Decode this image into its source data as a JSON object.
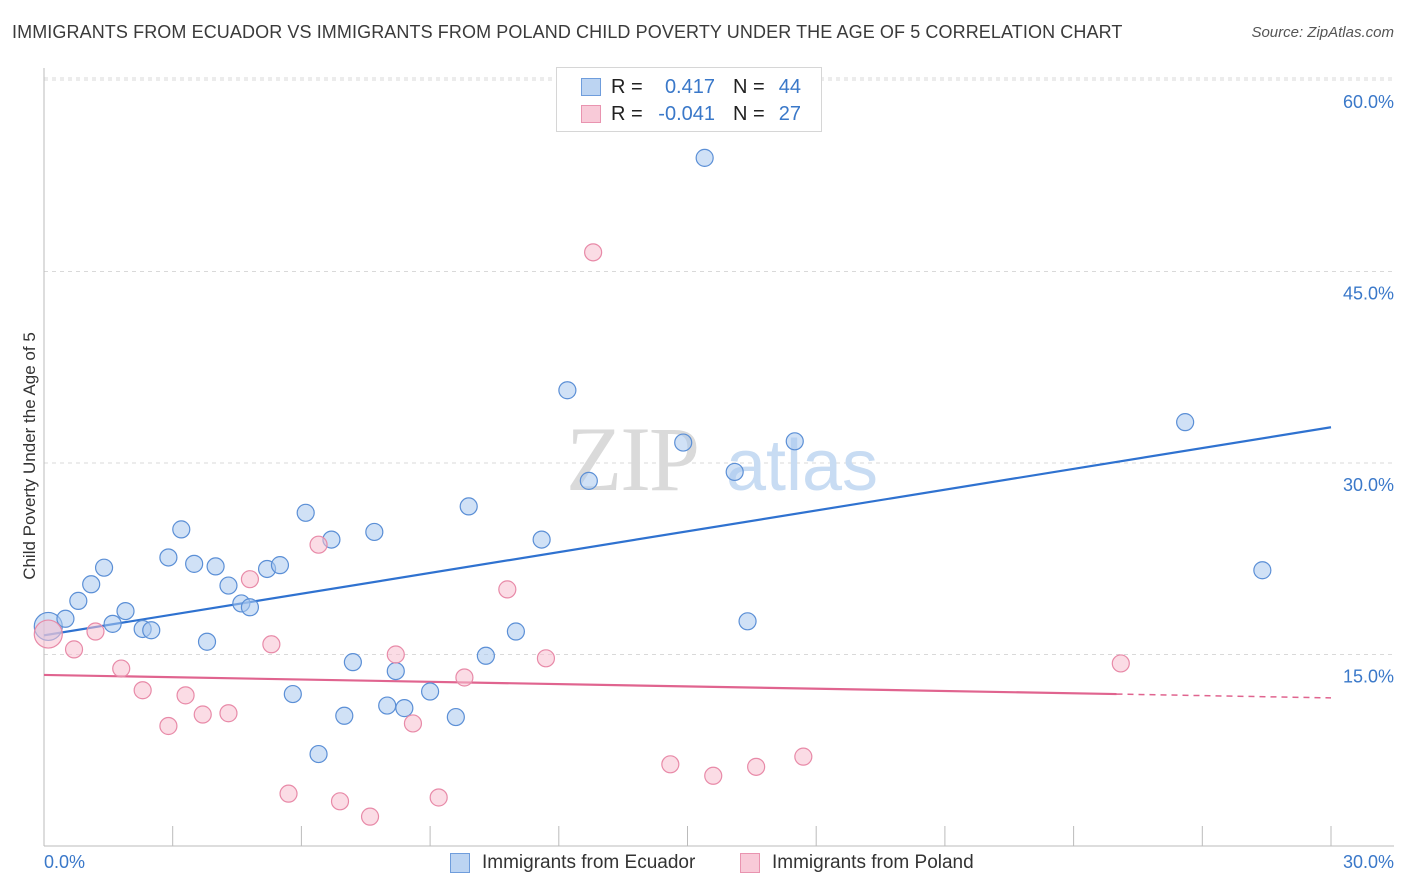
{
  "header": {
    "title": "IMMIGRANTS FROM ECUADOR VS IMMIGRANTS FROM POLAND CHILD POVERTY UNDER THE AGE OF 5 CORRELATION CHART",
    "source": "Source: ZipAtlas.com"
  },
  "legend": {
    "ecuador": {
      "r_label": "R =",
      "r_value": "0.417",
      "n_label": "N =",
      "n_value": "44"
    },
    "poland": {
      "r_label": "R =",
      "r_value": "-0.041",
      "n_label": "N =",
      "n_value": "27"
    }
  },
  "bottom_legend": {
    "ecuador": "Immigrants from Ecuador",
    "poland": "Immigrants from Poland"
  },
  "colors": {
    "ecuador_fill": "#a9c8ef",
    "ecuador_stroke": "#5b8fd6",
    "ecuador_line": "#2f72d0",
    "poland_fill": "#f7bfd0",
    "poland_stroke": "#e88aa8",
    "poland_line": "#e0648f",
    "axis_label": "#3a78c9",
    "grid": "#d9d9d9"
  },
  "watermark": {
    "zip": "ZIP",
    "atlas": "atlas"
  },
  "chart_data": {
    "type": "scatter",
    "title": "IMMIGRANTS FROM ECUADOR VS IMMIGRANTS FROM POLAND CHILD POVERTY UNDER THE AGE OF 5 CORRELATION CHART",
    "xlabel": "",
    "ylabel": "Child Poverty Under the Age of 5",
    "xlim": [
      0,
      30
    ],
    "ylim": [
      0,
      60
    ],
    "x_tick_labels": [
      "0.0%",
      "30.0%"
    ],
    "y_ticks": [
      15,
      30,
      45,
      60
    ],
    "y_tick_labels": [
      "15.0%",
      "30.0%",
      "45.0%",
      "60.0%"
    ],
    "grid": true,
    "legend_position": "top-center",
    "series": [
      {
        "name": "Immigrants from Ecuador",
        "r": 0.417,
        "n": 44,
        "trend": {
          "x": [
            0,
            30
          ],
          "y": [
            16.5,
            32.8
          ]
        },
        "points": [
          [
            0.1,
            17.2
          ],
          [
            0.5,
            17.8
          ],
          [
            0.8,
            19.2
          ],
          [
            1.1,
            20.5
          ],
          [
            1.4,
            21.8
          ],
          [
            1.6,
            17.4
          ],
          [
            1.9,
            18.4
          ],
          [
            2.3,
            17.0
          ],
          [
            2.5,
            16.9
          ],
          [
            2.9,
            22.6
          ],
          [
            3.2,
            24.8
          ],
          [
            3.5,
            22.1
          ],
          [
            3.8,
            16.0
          ],
          [
            4.0,
            21.9
          ],
          [
            4.3,
            20.4
          ],
          [
            4.6,
            19.0
          ],
          [
            4.8,
            18.7
          ],
          [
            5.2,
            21.7
          ],
          [
            5.5,
            22.0
          ],
          [
            5.8,
            11.9
          ],
          [
            6.1,
            26.1
          ],
          [
            6.4,
            7.2
          ],
          [
            6.7,
            24.0
          ],
          [
            7.0,
            10.2
          ],
          [
            7.2,
            14.4
          ],
          [
            7.7,
            24.6
          ],
          [
            8.0,
            11.0
          ],
          [
            8.2,
            13.7
          ],
          [
            8.4,
            10.8
          ],
          [
            9.0,
            12.1
          ],
          [
            9.6,
            10.1
          ],
          [
            9.9,
            26.6
          ],
          [
            10.3,
            14.9
          ],
          [
            11.0,
            16.8
          ],
          [
            11.6,
            24.0
          ],
          [
            12.2,
            35.7
          ],
          [
            12.7,
            28.6
          ],
          [
            14.9,
            31.6
          ],
          [
            15.4,
            53.9
          ],
          [
            16.1,
            29.3
          ],
          [
            16.4,
            17.6
          ],
          [
            17.5,
            31.7
          ],
          [
            26.6,
            33.2
          ],
          [
            28.4,
            21.6
          ]
        ]
      },
      {
        "name": "Immigrants from Poland",
        "r": -0.041,
        "n": 27,
        "trend": {
          "x": [
            0,
            25
          ],
          "y": [
            13.4,
            11.9
          ]
        },
        "trend_dashed": {
          "x": [
            25,
            30
          ],
          "y": [
            11.9,
            11.6
          ]
        },
        "points": [
          [
            0.1,
            16.6
          ],
          [
            0.7,
            15.4
          ],
          [
            1.2,
            16.8
          ],
          [
            1.8,
            13.9
          ],
          [
            2.3,
            12.2
          ],
          [
            2.9,
            9.4
          ],
          [
            3.3,
            11.8
          ],
          [
            3.7,
            10.3
          ],
          [
            4.3,
            10.4
          ],
          [
            4.8,
            20.9
          ],
          [
            5.3,
            15.8
          ],
          [
            5.7,
            4.1
          ],
          [
            6.4,
            23.6
          ],
          [
            6.9,
            3.5
          ],
          [
            7.6,
            2.3
          ],
          [
            8.2,
            15.0
          ],
          [
            8.6,
            9.6
          ],
          [
            9.2,
            3.8
          ],
          [
            9.8,
            13.2
          ],
          [
            10.8,
            20.1
          ],
          [
            11.7,
            14.7
          ],
          [
            12.8,
            46.5
          ],
          [
            14.6,
            6.4
          ],
          [
            15.6,
            5.5
          ],
          [
            16.6,
            6.2
          ],
          [
            17.7,
            7.0
          ],
          [
            25.1,
            14.3
          ]
        ]
      }
    ]
  }
}
